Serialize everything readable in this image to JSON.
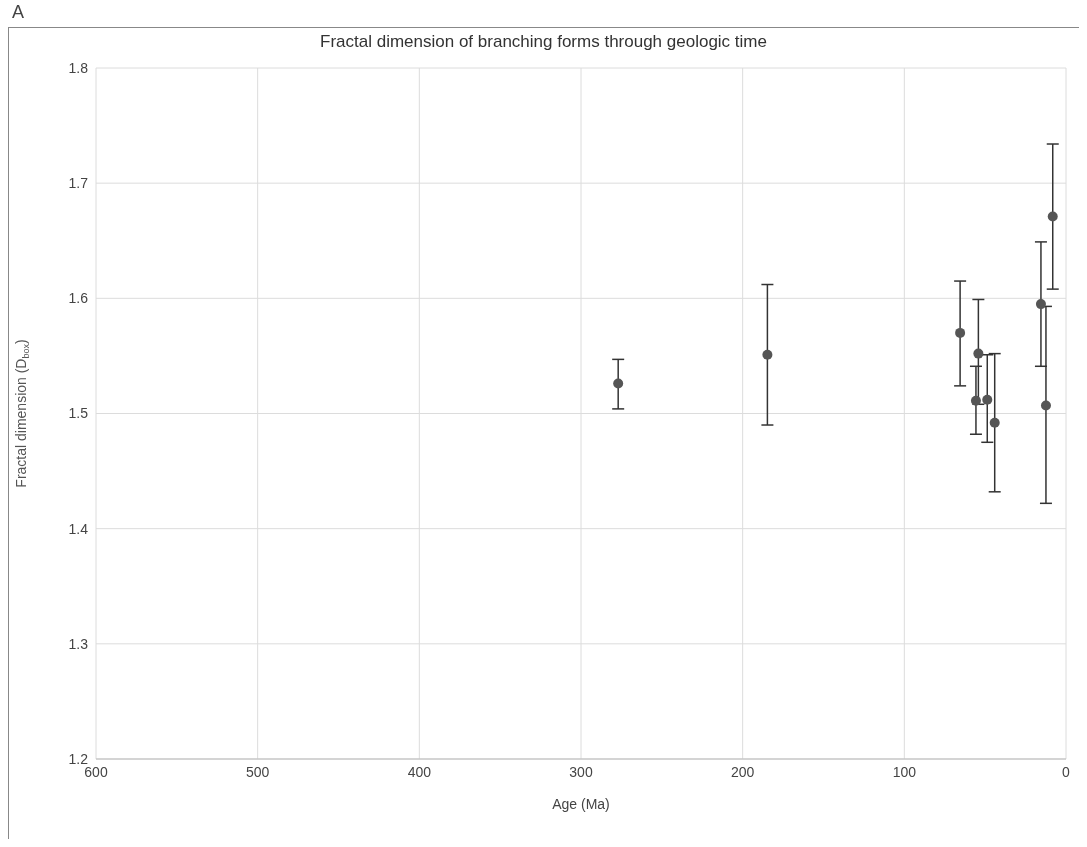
{
  "chart_data": {
    "type": "scatter",
    "title": "Fractal dimension of branching forms through geologic time",
    "xlabel": "Age (Ma)",
    "ylabel": "Fractal dimension (D$_{box}$)",
    "annotations": [
      "A"
    ],
    "x": [
      277,
      184.7,
      65.5,
      54.2,
      55.7,
      48.7,
      44.1,
      15.5,
      12.4,
      8.2
    ],
    "series": [
      {
        "color": "#555555",
        "values": [
          1.526,
          1.551,
          1.57,
          1.552,
          1.511,
          1.512,
          1.492,
          1.595,
          1.507,
          1.671
        ],
        "errors": [
          [
            1.504,
            1.547
          ],
          [
            1.49,
            1.612
          ],
          [
            1.524,
            1.615
          ],
          [
            1.508,
            1.599
          ],
          [
            1.482,
            1.541
          ],
          [
            1.475,
            1.551
          ],
          [
            1.432,
            1.552
          ],
          [
            1.541,
            1.649
          ],
          [
            1.422,
            1.593
          ],
          [
            1.608,
            1.734
          ]
        ]
      }
    ],
    "xlim": [
      600,
      0
    ],
    "xticks": [
      600,
      500,
      400,
      300,
      200,
      100,
      0
    ],
    "ylim": [
      1.2,
      1.8
    ],
    "yticks": [
      1.2,
      1.3,
      1.4,
      1.5,
      1.6,
      1.7,
      1.8
    ],
    "grid": true,
    "marker": "circle"
  }
}
